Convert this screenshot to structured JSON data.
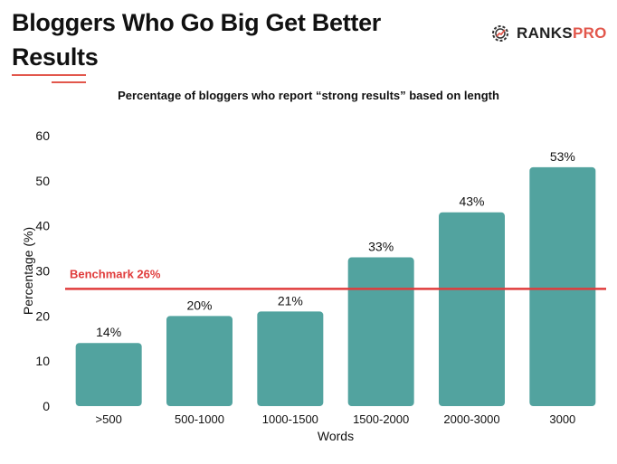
{
  "header": {
    "title": "Bloggers Who Go Big Get Better Results",
    "logo_text_main": "RANKS",
    "logo_text_accent": "PRO",
    "logo_icon": "gear-chart-icon",
    "accent_color": "#e2574c"
  },
  "chart_data": {
    "type": "bar",
    "title": "Percentage of bloggers who report “strong results” based on length",
    "xlabel": "Words",
    "ylabel": "Percentage (%)",
    "categories": [
      ">500",
      "500-1000",
      "1000-1500",
      "1500-2000",
      "2000-3000",
      "3000"
    ],
    "values": [
      14,
      20,
      21,
      33,
      43,
      53
    ],
    "value_labels": [
      "14%",
      "20%",
      "21%",
      "33%",
      "43%",
      "53%"
    ],
    "ylim": [
      0,
      60
    ],
    "yticks": [
      0,
      10,
      20,
      30,
      40,
      50,
      60
    ],
    "grid": false,
    "bar_color": "#52a39f",
    "benchmark": {
      "value": 26,
      "label": "Benchmark 26%",
      "color": "#e03c3c"
    }
  }
}
